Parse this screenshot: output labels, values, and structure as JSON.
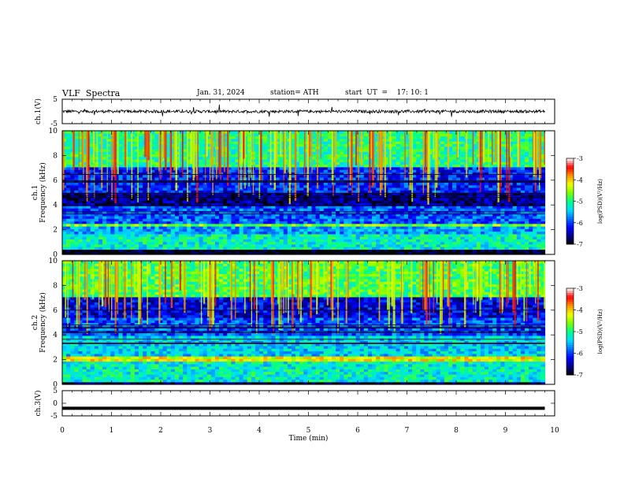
{
  "header": {
    "title": "VLF  Spectra",
    "date": "Jan. 31, 2024",
    "station": "station= ATH",
    "start_ut": "start  UT  =    17: 10: 1"
  },
  "chart_data": [
    {
      "type": "line",
      "panel": "ch1-waveform",
      "ylabel": "ch.1(V)",
      "ylim": [
        -5,
        5
      ],
      "y_ticks": [
        "5",
        "-5"
      ],
      "xlim": [
        0,
        10
      ],
      "description_values": {
        "baseline": 0.0,
        "noise_amplitude": 1.0,
        "spike_amplitude": 2.5
      }
    },
    {
      "type": "heatmap",
      "panel": "ch1-spectrogram",
      "ylabel": "ch.1\nFrequency (kHz)",
      "ylabel_line1": "ch.1",
      "ylabel_line2": "Frequency (kHz)",
      "ylim": [
        0,
        10
      ],
      "y_ticks": [
        "0",
        "2",
        "4",
        "6",
        "8",
        "10"
      ],
      "xlim": [
        0,
        9.8
      ],
      "bands": [
        {
          "f_low": 0.0,
          "f_high": 0.4,
          "level": -7.0
        },
        {
          "f_low": 0.4,
          "f_high": 1.6,
          "level": -5.2
        },
        {
          "f_low": 1.6,
          "f_high": 2.2,
          "level": -5.6
        },
        {
          "f_low": 2.2,
          "f_high": 2.5,
          "level": -4.6
        },
        {
          "f_low": 2.5,
          "f_high": 4.0,
          "level": -5.9
        },
        {
          "f_low": 4.0,
          "f_high": 5.0,
          "level": -6.6
        },
        {
          "f_low": 5.0,
          "f_high": 7.0,
          "level": -6.1
        },
        {
          "f_low": 7.0,
          "f_high": 10.0,
          "level": -5.0
        }
      ]
    },
    {
      "type": "heatmap",
      "panel": "ch2-spectrogram",
      "ylabel_line1": "ch.2",
      "ylabel_line2": "Frequency (kHz)",
      "ylim": [
        0,
        10
      ],
      "y_ticks": [
        "0",
        "2",
        "4",
        "6",
        "8",
        "10"
      ],
      "xlim": [
        0,
        9.8
      ],
      "bands": [
        {
          "f_low": 0.0,
          "f_high": 0.3,
          "level": -6.8
        },
        {
          "f_low": 0.3,
          "f_high": 1.8,
          "level": -5.2
        },
        {
          "f_low": 1.8,
          "f_high": 2.3,
          "level": -4.2
        },
        {
          "f_low": 2.3,
          "f_high": 4.0,
          "level": -5.4
        },
        {
          "f_low": 4.0,
          "f_high": 5.5,
          "level": -5.9
        },
        {
          "f_low": 5.5,
          "f_high": 7.0,
          "level": -6.3
        },
        {
          "f_low": 7.0,
          "f_high": 10.0,
          "level": -4.8
        }
      ]
    },
    {
      "type": "line",
      "panel": "ch3-waveform",
      "ylabel": "ch.3(V)",
      "ylim": [
        -5,
        5
      ],
      "y_ticks": [
        "5",
        "0",
        "-5"
      ],
      "xlim": [
        0,
        10
      ],
      "description_values": {
        "baseline": -2.0
      }
    }
  ],
  "time_axis": {
    "label": "Time  (min)",
    "ticks": [
      "0",
      "1",
      "2",
      "3",
      "4",
      "5",
      "6",
      "7",
      "8",
      "9",
      "10"
    ]
  },
  "colorbars": [
    {
      "label": "log(PSD)(V²/Hz)",
      "ticks": [
        "-3",
        "-4",
        "-5",
        "-6",
        "-7"
      ],
      "range": [
        -7,
        -3
      ]
    },
    {
      "label": "log(PSD)(V²/Hz)",
      "ticks": [
        "-3",
        "-4",
        "-5",
        "-6",
        "-7"
      ],
      "range": [
        -7,
        -3
      ]
    }
  ],
  "colors": {
    "axis": "#000000",
    "trace": "#000000",
    "colormap": [
      "#000000",
      "#00008b",
      "#0000ff",
      "#0080ff",
      "#00ffff",
      "#00ff80",
      "#80ff00",
      "#ffff00",
      "#ff8000",
      "#ff0000",
      "#ffffff"
    ]
  }
}
